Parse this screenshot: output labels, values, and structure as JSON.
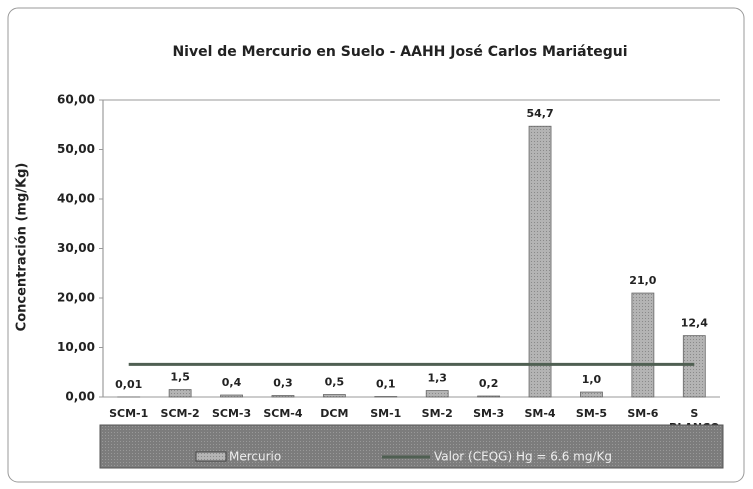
{
  "chart_data": {
    "type": "bar",
    "title": "Nivel de Mercurio en Suelo  -  AAHH José Carlos Mariátegui",
    "y_label": "Concentración (mg/Kg)",
    "categories": [
      "SCM-1",
      "SCM-2",
      "SCM-3",
      "SCM-4",
      "DCM",
      "SM-1",
      "SM-2",
      "SM-3",
      "SM-4",
      "SM-5",
      "SM-6",
      "S BLANCO"
    ],
    "series": [
      {
        "name": "Mercurio",
        "type": "bar",
        "color": "#a8a8a8",
        "values": [
          0.01,
          1.5,
          0.4,
          0.3,
          0.5,
          0.1,
          1.3,
          0.2,
          54.7,
          1.0,
          21.0,
          12.4
        ],
        "value_labels": [
          "0,01",
          "1,5",
          "0,4",
          "0,3",
          "0,5",
          "0,1",
          "1,3",
          "0,2",
          "54,7",
          "1,0",
          "21,0",
          "12,4"
        ]
      },
      {
        "name": "Valor (CEQG) Hg = 6.6 mg/Kg",
        "type": "line",
        "color": "#4f5f52",
        "values": [
          6.6,
          6.6,
          6.6,
          6.6,
          6.6,
          6.6,
          6.6,
          6.6,
          6.6,
          6.6,
          6.6,
          6.6
        ]
      }
    ],
    "ylim": [
      0,
      60
    ],
    "yticks": [
      {
        "value": 0,
        "label": "0,00"
      },
      {
        "value": 10,
        "label": "10,00"
      },
      {
        "value": 20,
        "label": "20,00"
      },
      {
        "value": 30,
        "label": "30,00"
      },
      {
        "value": 40,
        "label": "40,00"
      },
      {
        "value": 50,
        "label": "50,00"
      },
      {
        "value": 60,
        "label": "60,00"
      }
    ],
    "grid": false,
    "legend": "bottom"
  }
}
